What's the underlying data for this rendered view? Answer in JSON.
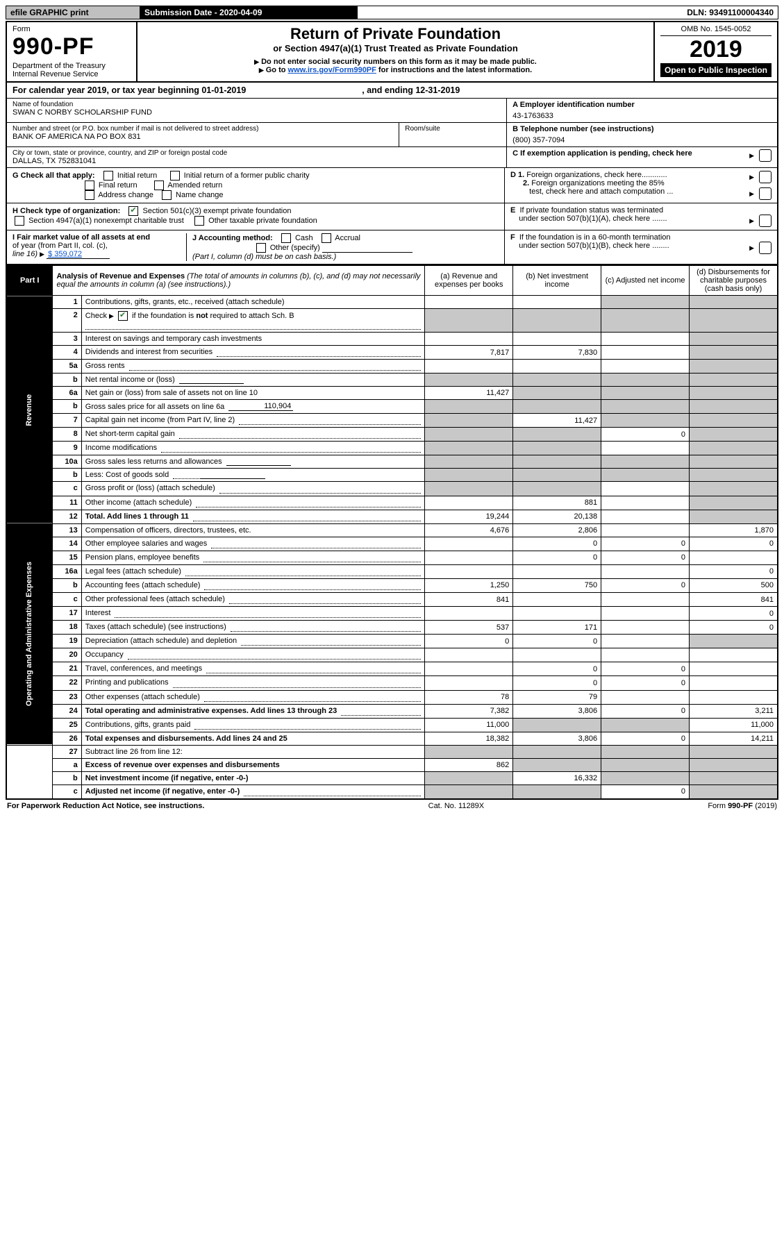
{
  "topbar": {
    "efile": "efile GRAPHIC print",
    "submission": "Submission Date - 2020-04-09",
    "dln": "DLN: 93491100004340"
  },
  "header": {
    "form_word": "Form",
    "form_no": "990-PF",
    "dept": "Department of the Treasury",
    "irs": "Internal Revenue Service",
    "title": "Return of Private Foundation",
    "subtitle": "or Section 4947(a)(1) Trust Treated as Private Foundation",
    "instr1": "Do not enter social security numbers on this form as it may be made public.",
    "instr2_pre": "Go to ",
    "instr2_link": "www.irs.gov/Form990PF",
    "instr2_post": " for instructions and the latest information.",
    "omb": "OMB No. 1545-0052",
    "tax_year": "2019",
    "inspect": "Open to Public Inspection"
  },
  "calendar": {
    "pre": "For calendar year 2019, or tax year beginning ",
    "begin": "01-01-2019",
    "mid": " , and ending ",
    "end": "12-31-2019"
  },
  "id": {
    "name_lbl": "Name of foundation",
    "name": "SWAN C NORBY SCHOLARSHIP FUND",
    "addr_lbl": "Number and street (or P.O. box number if mail is not delivered to street address)",
    "addr": "BANK OF AMERICA NA PO BOX 831",
    "room_lbl": "Room/suite",
    "room": "",
    "city_lbl": "City or town, state or province, country, and ZIP or foreign postal code",
    "city": "DALLAS, TX  752831041",
    "a_lbl": "A Employer identification number",
    "a_val": "43-1763633",
    "b_lbl": "B Telephone number (see instructions)",
    "b_val": "(800) 357-7094",
    "c_lbl": "C If exemption application is pending, check here"
  },
  "g": {
    "lbl": "G Check all that apply:",
    "o1": "Initial return",
    "o2": "Initial return of a former public charity",
    "o3": "Final return",
    "o4": "Amended return",
    "o5": "Address change",
    "o6": "Name change"
  },
  "h": {
    "lbl": "H Check type of organization:",
    "o1": "Section 501(c)(3) exempt private foundation",
    "o2": "Section 4947(a)(1) nonexempt charitable trust",
    "o3": "Other taxable private foundation",
    "h_checked": true
  },
  "i": {
    "lbl1": "I Fair market value of all assets at end",
    "lbl2": "of year (from Part II, col. (c),",
    "lbl3": "line 16) ",
    "val": "$  359,072"
  },
  "j": {
    "lbl": "J Accounting method:",
    "o1": "Cash",
    "o2": "Accrual",
    "o3": "Other (specify)",
    "note": "(Part I, column (d) must be on cash basis.)"
  },
  "right_flags": {
    "d1": "D 1. Foreign organizations, check here............",
    "d2a": "2. Foreign organizations meeting the 85%",
    "d2b": "test, check here and attach computation ...",
    "e1": "E  If private foundation status was terminated",
    "e2": "under section 507(b)(1)(A), check here .......",
    "f1": "F  If the foundation is in a 60-month termination",
    "f2": "under section 507(b)(1)(B), check here ........"
  },
  "part1": {
    "label": "Part I",
    "title": "Analysis of Revenue and Expenses",
    "title_note": " (The total of amounts in columns (b), (c), and (d) may not necessarily equal the amounts in column (a) (see instructions).)",
    "cols": {
      "a": "(a)   Revenue and expenses per books",
      "b": "(b)  Net investment income",
      "c": "(c)  Adjusted net income",
      "d": "(d)  Disbursements for charitable purposes (cash basis only)"
    },
    "side_rev": "Revenue",
    "side_exp": "Operating and Administrative Expenses",
    "rows": [
      {
        "n": "1",
        "t": "Contributions, gifts, grants, etc., received (attach schedule)",
        "a": "",
        "b": "",
        "c": "sh",
        "d": "sh"
      },
      {
        "n": "2",
        "t": "Check ▶ ✔ if the foundation is not required to attach Sch. B",
        "a": "sh",
        "b": "sh",
        "c": "sh",
        "d": "sh",
        "checkmark": true,
        "dots": true
      },
      {
        "n": "3",
        "t": "Interest on savings and temporary cash investments",
        "a": "",
        "b": "",
        "c": "",
        "d": "sh"
      },
      {
        "n": "4",
        "t": "Dividends and interest from securities",
        "a": "7,817",
        "b": "7,830",
        "c": "",
        "d": "sh",
        "dots": true
      },
      {
        "n": "5a",
        "t": "Gross rents",
        "a": "",
        "b": "",
        "c": "",
        "d": "sh",
        "dots": true
      },
      {
        "n": "b",
        "t": "Net rental income or (loss)",
        "a": "sh",
        "b": "sh",
        "c": "sh",
        "d": "sh",
        "inline": true
      },
      {
        "n": "6a",
        "t": "Net gain or (loss) from sale of assets not on line 10",
        "a": "11,427",
        "b": "sh",
        "c": "sh",
        "d": "sh"
      },
      {
        "n": "b",
        "t": "Gross sales price for all assets on line 6a",
        "a": "sh",
        "b": "sh",
        "c": "sh",
        "d": "sh",
        "inline": true,
        "inlineval": "110,904"
      },
      {
        "n": "7",
        "t": "Capital gain net income (from Part IV, line 2)",
        "a": "sh",
        "b": "11,427",
        "c": "sh",
        "d": "sh",
        "dots": true
      },
      {
        "n": "8",
        "t": "Net short-term capital gain",
        "a": "sh",
        "b": "sh",
        "c": "0",
        "d": "sh",
        "dots": true
      },
      {
        "n": "9",
        "t": "Income modifications",
        "a": "sh",
        "b": "sh",
        "c": "",
        "d": "sh",
        "dots": true
      },
      {
        "n": "10a",
        "t": "Gross sales less returns and allowances",
        "a": "sh",
        "b": "sh",
        "c": "sh",
        "d": "sh",
        "inline": true
      },
      {
        "n": "b",
        "t": "Less: Cost of goods sold",
        "a": "sh",
        "b": "sh",
        "c": "sh",
        "d": "sh",
        "inline": true,
        "dots": true
      },
      {
        "n": "c",
        "t": "Gross profit or (loss) (attach schedule)",
        "a": "sh",
        "b": "sh",
        "c": "",
        "d": "sh",
        "dots": true
      },
      {
        "n": "11",
        "t": "Other income (attach schedule)",
        "a": "",
        "b": "881",
        "c": "",
        "d": "sh",
        "dots": true
      },
      {
        "n": "12",
        "t": "Total. Add lines 1 through 11",
        "a": "19,244",
        "b": "20,138",
        "c": "",
        "d": "sh",
        "bold": true,
        "dots": true
      },
      {
        "n": "13",
        "t": "Compensation of officers, directors, trustees, etc.",
        "a": "4,676",
        "b": "2,806",
        "c": "",
        "d": "1,870"
      },
      {
        "n": "14",
        "t": "Other employee salaries and wages",
        "a": "",
        "b": "0",
        "c": "0",
        "d": "0",
        "dots": true
      },
      {
        "n": "15",
        "t": "Pension plans, employee benefits",
        "a": "",
        "b": "0",
        "c": "0",
        "d": "",
        "dots": true
      },
      {
        "n": "16a",
        "t": "Legal fees (attach schedule)",
        "a": "",
        "b": "",
        "c": "",
        "d": "0",
        "dots": true
      },
      {
        "n": "b",
        "t": "Accounting fees (attach schedule)",
        "a": "1,250",
        "b": "750",
        "c": "0",
        "d": "500",
        "dots": true
      },
      {
        "n": "c",
        "t": "Other professional fees (attach schedule)",
        "a": "841",
        "b": "",
        "c": "",
        "d": "841",
        "dots": true
      },
      {
        "n": "17",
        "t": "Interest",
        "a": "",
        "b": "",
        "c": "",
        "d": "0",
        "dots": true
      },
      {
        "n": "18",
        "t": "Taxes (attach schedule) (see instructions)",
        "a": "537",
        "b": "171",
        "c": "",
        "d": "0",
        "dots": true
      },
      {
        "n": "19",
        "t": "Depreciation (attach schedule) and depletion",
        "a": "0",
        "b": "0",
        "c": "",
        "d": "sh",
        "dots": true
      },
      {
        "n": "20",
        "t": "Occupancy",
        "a": "",
        "b": "",
        "c": "",
        "d": "",
        "dots": true
      },
      {
        "n": "21",
        "t": "Travel, conferences, and meetings",
        "a": "",
        "b": "0",
        "c": "0",
        "d": "",
        "dots": true
      },
      {
        "n": "22",
        "t": "Printing and publications",
        "a": "",
        "b": "0",
        "c": "0",
        "d": "",
        "dots": true
      },
      {
        "n": "23",
        "t": "Other expenses (attach schedule)",
        "a": "78",
        "b": "79",
        "c": "",
        "d": "",
        "dots": true
      },
      {
        "n": "24",
        "t": "Total operating and administrative expenses. Add lines 13 through 23",
        "a": "7,382",
        "b": "3,806",
        "c": "0",
        "d": "3,211",
        "bold": true,
        "dots": true
      },
      {
        "n": "25",
        "t": "Contributions, gifts, grants paid",
        "a": "11,000",
        "b": "sh",
        "c": "sh",
        "d": "11,000",
        "dots": true
      },
      {
        "n": "26",
        "t": "Total expenses and disbursements. Add lines 24 and 25",
        "a": "18,382",
        "b": "3,806",
        "c": "0",
        "d": "14,211",
        "bold": true
      },
      {
        "n": "27",
        "t": "Subtract line 26 from line 12:",
        "a": "sh",
        "b": "sh",
        "c": "sh",
        "d": "sh"
      },
      {
        "n": "a",
        "t": "Excess of revenue over expenses and disbursements",
        "a": "862",
        "b": "sh",
        "c": "sh",
        "d": "sh",
        "bold": true
      },
      {
        "n": "b",
        "t": "Net investment income (if negative, enter -0-)",
        "a": "sh",
        "b": "16,332",
        "c": "sh",
        "d": "sh",
        "bold": true
      },
      {
        "n": "c",
        "t": "Adjusted net income (if negative, enter -0-)",
        "a": "sh",
        "b": "sh",
        "c": "0",
        "d": "sh",
        "bold": true,
        "dots": true
      }
    ]
  },
  "footer": {
    "left": "For Paperwork Reduction Act Notice, see instructions.",
    "mid": "Cat. No. 11289X",
    "right": "Form 990-PF (2019)"
  }
}
